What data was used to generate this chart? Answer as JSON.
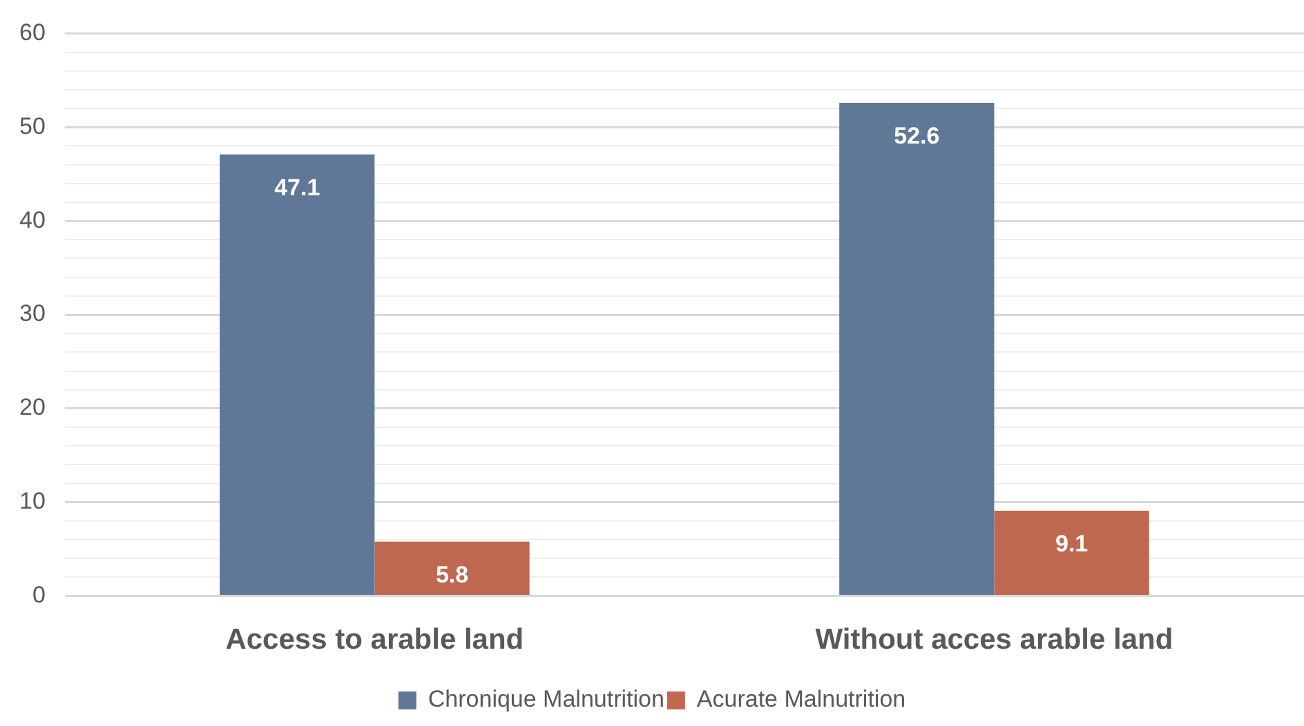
{
  "chart_data": {
    "type": "bar",
    "categories": [
      "Access to arable land",
      "Without acces arable land"
    ],
    "series": [
      {
        "name": "Chronique Malnutrition",
        "color": "#5f7897",
        "values": [
          47.1,
          52.6
        ]
      },
      {
        "name": "Acurate Malnutrition",
        "color": "#c0684f",
        "values": [
          5.8,
          9.1
        ]
      }
    ],
    "ylim": [
      0,
      60
    ],
    "yticks": [
      0,
      {
        "value": 2,
        "label": null
      },
      {
        "value": 4,
        "label": null
      },
      {
        "value": 6,
        "label": null
      },
      {
        "value": 8,
        "label": null
      },
      10,
      {
        "value": 12,
        "label": null
      },
      {
        "value": 14,
        "label": null
      },
      {
        "value": 16,
        "label": null
      },
      {
        "value": 18,
        "label": null
      },
      20,
      {
        "value": 22,
        "label": null
      },
      {
        "value": 24,
        "label": null
      },
      {
        "value": 26,
        "label": null
      },
      {
        "value": 28,
        "label": null
      },
      30,
      {
        "value": 32,
        "label": null
      },
      {
        "value": 34,
        "label": null
      },
      {
        "value": 36,
        "label": null
      },
      {
        "value": 38,
        "label": null
      },
      40,
      {
        "value": 42,
        "label": null
      },
      {
        "value": 44,
        "label": null
      },
      {
        "value": 46,
        "label": null
      },
      {
        "value": 48,
        "label": null
      },
      50,
      {
        "value": 52,
        "label": null
      },
      {
        "value": 54,
        "label": null
      },
      {
        "value": 56,
        "label": null
      },
      {
        "value": 58,
        "label": null
      },
      60
    ],
    "grid": "y",
    "legend": "bottom",
    "data_labels": true
  }
}
